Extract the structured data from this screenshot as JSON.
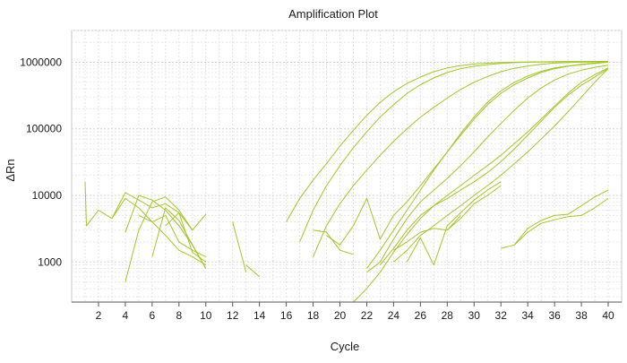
{
  "chart_data": {
    "type": "line",
    "title": "Amplification Plot",
    "xlabel": "Cycle",
    "ylabel": "ΔRn",
    "x_scale": "linear",
    "y_scale": "log",
    "xlim": [
      0,
      41
    ],
    "ylim": [
      250,
      3000000
    ],
    "x_ticks": [
      2,
      4,
      6,
      8,
      10,
      12,
      14,
      16,
      18,
      20,
      22,
      24,
      26,
      28,
      30,
      32,
      34,
      36,
      38,
      40
    ],
    "y_ticks": [
      1000,
      10000,
      100000,
      1000000
    ],
    "y_tick_labels": [
      "1000",
      "10000",
      "100000",
      "1000000"
    ],
    "grid": true,
    "legend": "none",
    "series_color": "#a3c62a",
    "series": [
      {
        "x": [
          16,
          17,
          18,
          19,
          20,
          21,
          22,
          23,
          24,
          25,
          26,
          27,
          28,
          29,
          30,
          31,
          32,
          33,
          34,
          35,
          36,
          37,
          38,
          39,
          40
        ],
        "y": [
          4000,
          9000,
          17000,
          30000,
          55000,
          95000,
          160000,
          250000,
          360000,
          480000,
          600000,
          720000,
          820000,
          890000,
          940000,
          970000,
          990000,
          1000000,
          1010000,
          1015000,
          1020000,
          1022000,
          1024000,
          1025000,
          1026000
        ]
      },
      {
        "x": [
          17,
          18,
          19,
          20,
          21,
          22,
          23,
          24,
          25,
          26,
          27,
          28,
          29,
          30,
          31,
          32,
          33,
          34,
          35,
          36,
          37,
          38,
          39,
          40
        ],
        "y": [
          2000,
          6000,
          14000,
          28000,
          52000,
          90000,
          150000,
          230000,
          340000,
          460000,
          580000,
          700000,
          800000,
          870000,
          920000,
          960000,
          985000,
          1000000,
          1010000,
          1015000,
          1020000,
          1023000,
          1025000,
          1026000
        ]
      },
      {
        "x": [
          18,
          19,
          20,
          21,
          22,
          23,
          24,
          25,
          26,
          27,
          28,
          29,
          30,
          31,
          32,
          33,
          34,
          35,
          36,
          37,
          38,
          39,
          40
        ],
        "y": [
          1200,
          3500,
          7500,
          14000,
          24000,
          40000,
          65000,
          100000,
          150000,
          210000,
          290000,
          390000,
          500000,
          610000,
          720000,
          810000,
          880000,
          930000,
          970000,
          990000,
          1000000,
          1010000,
          1015000
        ]
      },
      {
        "x": [
          19,
          20,
          21,
          22,
          23,
          24,
          25,
          26,
          27,
          28,
          29,
          30,
          31,
          32,
          33,
          34,
          35,
          36,
          37,
          38,
          39,
          40
        ],
        "y": [
          2500,
          1800,
          3500,
          9000,
          2200,
          5000,
          8000,
          14000,
          25000,
          45000,
          80000,
          140000,
          230000,
          340000,
          460000,
          580000,
          700000,
          800000,
          870000,
          920000,
          960000,
          1000000
        ]
      },
      {
        "x": [
          22,
          23,
          24,
          25,
          26,
          27,
          28,
          29,
          30,
          31,
          32,
          33,
          34,
          35,
          36,
          37,
          38,
          39,
          40
        ],
        "y": [
          800,
          1500,
          3000,
          6000,
          12000,
          24000,
          45000,
          85000,
          150000,
          250000,
          370000,
          500000,
          620000,
          730000,
          820000,
          880000,
          930000,
          970000,
          1000000
        ]
      },
      {
        "x": [
          22,
          23,
          24,
          25,
          26,
          27,
          28,
          29,
          30,
          31,
          32,
          33,
          34,
          35,
          36,
          37,
          38,
          39,
          40
        ],
        "y": [
          700,
          1000,
          2200,
          4500,
          8000,
          12000,
          18000,
          28000,
          45000,
          75000,
          120000,
          190000,
          290000,
          410000,
          540000,
          660000,
          760000,
          840000,
          900000
        ]
      },
      {
        "x": [
          23,
          24,
          25,
          26,
          27,
          28,
          29,
          30,
          31,
          32,
          33,
          34,
          35,
          36,
          37,
          38,
          39,
          40
        ],
        "y": [
          900,
          1600,
          3000,
          5000,
          7000,
          9000,
          12000,
          16000,
          22000,
          32000,
          50000,
          80000,
          130000,
          210000,
          320000,
          450000,
          600000,
          800000
        ]
      },
      {
        "x": [
          21,
          22,
          23,
          24,
          25,
          26,
          27,
          28,
          29,
          30,
          31,
          32,
          33,
          34,
          35,
          36,
          37,
          38,
          39,
          40
        ],
        "y": [
          250,
          400,
          700,
          1400,
          2600,
          4500,
          7000,
          10000,
          14000,
          20000,
          28000,
          40000,
          60000,
          90000,
          140000,
          220000,
          340000,
          500000,
          650000,
          820000
        ]
      },
      {
        "x": [
          24,
          25,
          26,
          27,
          28,
          29,
          30,
          31,
          32,
          33,
          34,
          35,
          36,
          37,
          38,
          39,
          40
        ],
        "y": [
          1000,
          1500,
          2500,
          3500,
          5000,
          7000,
          10000,
          14000,
          20000,
          30000,
          45000,
          70000,
          110000,
          180000,
          300000,
          500000,
          800000
        ]
      },
      {
        "x": [
          24,
          25,
          26,
          27,
          28,
          29,
          30,
          31,
          32
        ],
        "y": [
          1500,
          2000,
          2800,
          3200,
          3000,
          4500,
          7500,
          10000,
          14000
        ]
      },
      {
        "x": [
          25,
          26,
          27,
          28,
          29,
          30,
          31,
          32
        ],
        "y": [
          1000,
          2300,
          900,
          3500,
          5500,
          8500,
          12000,
          16000
        ]
      },
      {
        "x": [
          32,
          33,
          34,
          35,
          36,
          37,
          38,
          39,
          40
        ],
        "y": [
          1600,
          1800,
          3200,
          4200,
          5000,
          5200,
          7000,
          9500,
          12000
        ]
      },
      {
        "x": [
          33,
          34,
          35,
          36,
          37,
          38,
          39,
          40
        ],
        "y": [
          1800,
          2800,
          3800,
          4300,
          4800,
          5000,
          6500,
          9000
        ]
      },
      {
        "x": [
          1,
          1.1,
          2,
          3,
          4,
          5,
          6,
          7,
          8,
          9,
          10
        ],
        "y": [
          16000,
          3500,
          6000,
          4500,
          11000,
          8500,
          6500,
          7500,
          5500,
          3000,
          5200
        ]
      },
      {
        "x": [
          3,
          4,
          5,
          6,
          7,
          8,
          9,
          10
        ],
        "y": [
          4500,
          9000,
          6500,
          4000,
          5000,
          2000,
          1500,
          1200
        ]
      },
      {
        "x": [
          4,
          5,
          6,
          7,
          8,
          9,
          10
        ],
        "y": [
          2800,
          10000,
          8500,
          6000,
          3500,
          1800,
          800
        ]
      },
      {
        "x": [
          4,
          5,
          6,
          7,
          8,
          9
        ],
        "y": [
          500,
          3000,
          8000,
          9500,
          6000,
          3000
        ]
      },
      {
        "x": [
          5,
          6,
          7,
          8,
          9,
          10
        ],
        "y": [
          5000,
          4000,
          2500,
          1500,
          1200,
          900
        ]
      },
      {
        "x": [
          6,
          7,
          8,
          9,
          10
        ],
        "y": [
          1200,
          6500,
          4200,
          1800,
          800
        ]
      },
      {
        "x": [
          7,
          8,
          9,
          10
        ],
        "y": [
          3500,
          5500,
          1400,
          1000
        ]
      },
      {
        "x": [
          13,
          14
        ],
        "y": [
          900,
          600
        ]
      },
      {
        "x": [
          12,
          13
        ],
        "y": [
          4000,
          700
        ]
      },
      {
        "x": [
          18,
          19,
          20,
          21
        ],
        "y": [
          3000,
          2800,
          1500,
          1300
        ]
      },
      {
        "x": [
          28,
          29
        ],
        "y": [
          3000,
          5000
        ]
      }
    ]
  }
}
